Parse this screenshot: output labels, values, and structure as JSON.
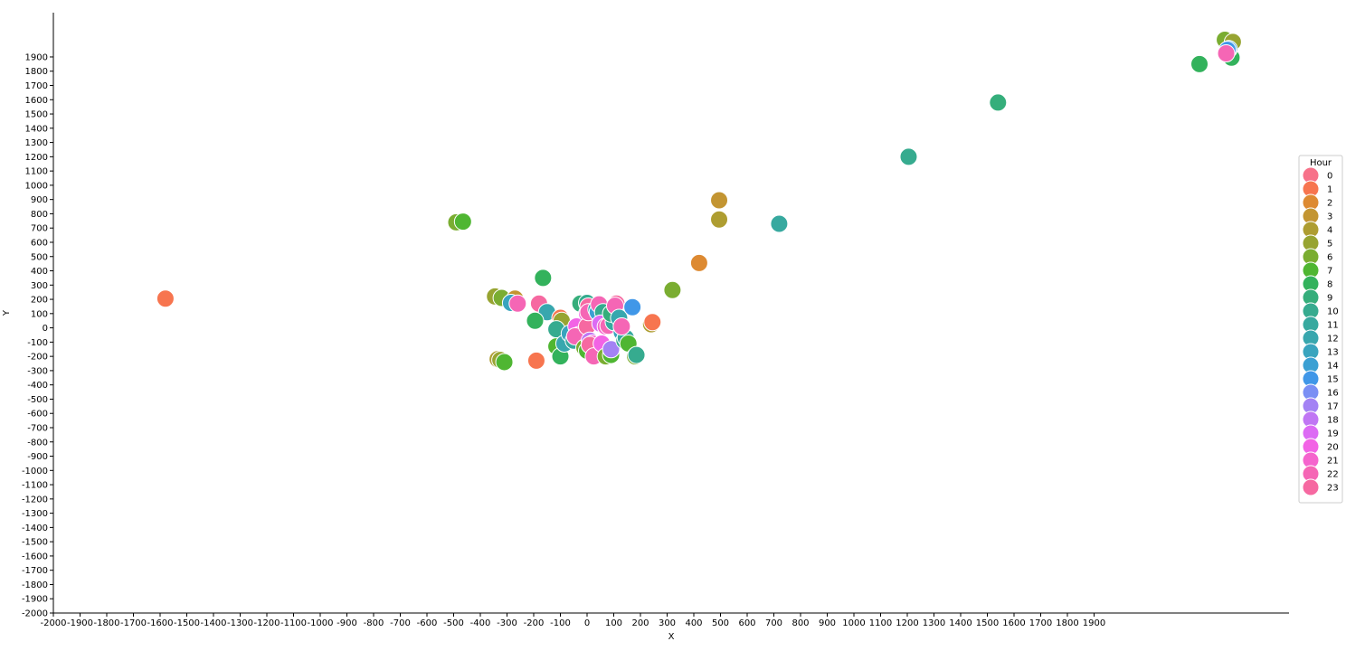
{
  "chart_data": {
    "type": "scatter",
    "xlabel": "X",
    "ylabel": "Y",
    "xlim": [
      -2000,
      2600
    ],
    "ylim": [
      -2000,
      2200
    ],
    "x_ticks": [
      -2000,
      -1900,
      -1800,
      -1700,
      -1600,
      -1500,
      -1400,
      -1300,
      -1200,
      -1100,
      -1000,
      -900,
      -800,
      -700,
      -600,
      -500,
      -400,
      -300,
      -200,
      -100,
      0,
      100,
      200,
      300,
      400,
      500,
      600,
      700,
      800,
      900,
      1000,
      1100,
      1200,
      1300,
      1400,
      1500,
      1600,
      1700,
      1800,
      1900
    ],
    "y_ticks": [
      -2000,
      -1900,
      -1800,
      -1700,
      -1600,
      -1500,
      -1400,
      -1300,
      -1200,
      -1100,
      -1000,
      -900,
      -800,
      -700,
      -600,
      -500,
      -400,
      -300,
      -200,
      -100,
      0,
      100,
      200,
      300,
      400,
      500,
      600,
      700,
      800,
      900,
      1000,
      1100,
      1200,
      1300,
      1400,
      1500,
      1600,
      1700,
      1800,
      1900
    ],
    "grid": false,
    "legend": {
      "title": "Hour",
      "placement": "right",
      "entries": [
        "0",
        "1",
        "2",
        "3",
        "4",
        "5",
        "6",
        "7",
        "8",
        "9",
        "10",
        "11",
        "12",
        "13",
        "14",
        "15",
        "16",
        "17",
        "18",
        "19",
        "20",
        "21",
        "22",
        "23"
      ]
    },
    "hour_colors": [
      "#f77189",
      "#f7754f",
      "#dd8a32",
      "#c39532",
      "#ae9d31",
      "#97a431",
      "#7aad31",
      "#4fb632",
      "#33b25c",
      "#35ae7b",
      "#36ab8f",
      "#37a99f",
      "#38a7ae",
      "#39a4be",
      "#3ba0d3",
      "#4097e8",
      "#7a8ff4",
      "#a382f4",
      "#c076f4",
      "#dc6af4",
      "#f263e5",
      "#f564cd",
      "#f566b5",
      "#f669a1"
    ],
    "points": [
      {
        "hour": 1,
        "x": -1580,
        "y": 205
      },
      {
        "hour": 6,
        "x": -490,
        "y": 740
      },
      {
        "hour": 7,
        "x": -465,
        "y": 745
      },
      {
        "hour": 3,
        "x": 495,
        "y": 895
      },
      {
        "hour": 4,
        "x": 495,
        "y": 760
      },
      {
        "hour": 2,
        "x": 420,
        "y": 455
      },
      {
        "hour": 6,
        "x": 320,
        "y": 265
      },
      {
        "hour": 4,
        "x": 240,
        "y": 25
      },
      {
        "hour": 1,
        "x": 245,
        "y": 40
      },
      {
        "hour": 11,
        "x": 720,
        "y": 730
      },
      {
        "hour": 10,
        "x": 1205,
        "y": 1200
      },
      {
        "hour": 9,
        "x": 1540,
        "y": 1580
      },
      {
        "hour": 8,
        "x": 2295,
        "y": 1850
      },
      {
        "hour": 6,
        "x": 2390,
        "y": 2020
      },
      {
        "hour": 5,
        "x": 2420,
        "y": 2005
      },
      {
        "hour": 8,
        "x": 2415,
        "y": 1895
      },
      {
        "hour": 14,
        "x": 2405,
        "y": 1955
      },
      {
        "hour": 15,
        "x": 2400,
        "y": 1950
      },
      {
        "hour": 22,
        "x": 2395,
        "y": 1925
      },
      {
        "hour": 5,
        "x": -345,
        "y": 220
      },
      {
        "hour": 6,
        "x": -320,
        "y": 210
      },
      {
        "hour": 3,
        "x": -270,
        "y": 205
      },
      {
        "hour": 13,
        "x": -285,
        "y": 175
      },
      {
        "hour": 22,
        "x": -260,
        "y": 170
      },
      {
        "hour": 23,
        "x": -180,
        "y": 170
      },
      {
        "hour": 8,
        "x": -165,
        "y": 350
      },
      {
        "hour": 12,
        "x": -150,
        "y": 110
      },
      {
        "hour": 8,
        "x": -195,
        "y": 50
      },
      {
        "hour": 1,
        "x": -100,
        "y": 70
      },
      {
        "hour": 5,
        "x": -95,
        "y": 50
      },
      {
        "hour": 10,
        "x": -115,
        "y": -10
      },
      {
        "hour": 7,
        "x": -115,
        "y": -130
      },
      {
        "hour": 8,
        "x": -100,
        "y": -200
      },
      {
        "hour": 1,
        "x": -190,
        "y": -230
      },
      {
        "hour": 4,
        "x": -335,
        "y": -220
      },
      {
        "hour": 5,
        "x": -325,
        "y": -225
      },
      {
        "hour": 7,
        "x": -310,
        "y": -240
      },
      {
        "hour": 12,
        "x": -85,
        "y": -110
      },
      {
        "hour": 13,
        "x": -65,
        "y": -40
      },
      {
        "hour": 11,
        "x": -50,
        "y": -90
      },
      {
        "hour": 20,
        "x": -40,
        "y": 10
      },
      {
        "hour": 21,
        "x": -30,
        "y": -50
      },
      {
        "hour": 22,
        "x": -45,
        "y": -60
      },
      {
        "hour": 9,
        "x": -25,
        "y": 170
      },
      {
        "hour": 10,
        "x": 0,
        "y": 175
      },
      {
        "hour": 11,
        "x": 10,
        "y": 140
      },
      {
        "hour": 23,
        "x": 5,
        "y": 150
      },
      {
        "hour": 20,
        "x": 0,
        "y": 100
      },
      {
        "hour": 23,
        "x": 0,
        "y": 10
      },
      {
        "hour": 22,
        "x": 5,
        "y": 110
      },
      {
        "hour": 6,
        "x": -10,
        "y": -140
      },
      {
        "hour": 7,
        "x": 0,
        "y": -160
      },
      {
        "hour": 18,
        "x": 10,
        "y": -90
      },
      {
        "hour": 21,
        "x": 20,
        "y": -110
      },
      {
        "hour": 23,
        "x": 10,
        "y": -120
      },
      {
        "hour": 22,
        "x": 25,
        "y": -200
      },
      {
        "hour": 12,
        "x": 35,
        "y": 130
      },
      {
        "hour": 14,
        "x": 40,
        "y": 110
      },
      {
        "hour": 22,
        "x": 45,
        "y": 165
      },
      {
        "hour": 10,
        "x": 60,
        "y": 110
      },
      {
        "hour": 19,
        "x": 50,
        "y": 30
      },
      {
        "hour": 20,
        "x": 55,
        "y": -110
      },
      {
        "hour": 6,
        "x": 70,
        "y": -200
      },
      {
        "hour": 7,
        "x": 90,
        "y": -190
      },
      {
        "hour": 17,
        "x": 90,
        "y": -150
      },
      {
        "hour": 21,
        "x": 70,
        "y": 10
      },
      {
        "hour": 22,
        "x": 80,
        "y": 15
      },
      {
        "hour": 11,
        "x": 100,
        "y": 40
      },
      {
        "hour": 9,
        "x": 90,
        "y": 100
      },
      {
        "hour": 23,
        "x": 110,
        "y": 170
      },
      {
        "hour": 22,
        "x": 105,
        "y": 155
      },
      {
        "hour": 12,
        "x": 120,
        "y": 70
      },
      {
        "hour": 13,
        "x": 130,
        "y": -30
      },
      {
        "hour": 10,
        "x": 140,
        "y": -90
      },
      {
        "hour": 11,
        "x": 145,
        "y": -70
      },
      {
        "hour": 7,
        "x": 155,
        "y": -110
      },
      {
        "hour": 22,
        "x": 130,
        "y": 10
      },
      {
        "hour": 15,
        "x": 170,
        "y": 145
      },
      {
        "hour": 6,
        "x": 180,
        "y": -200
      },
      {
        "hour": 10,
        "x": 185,
        "y": -190
      }
    ]
  }
}
